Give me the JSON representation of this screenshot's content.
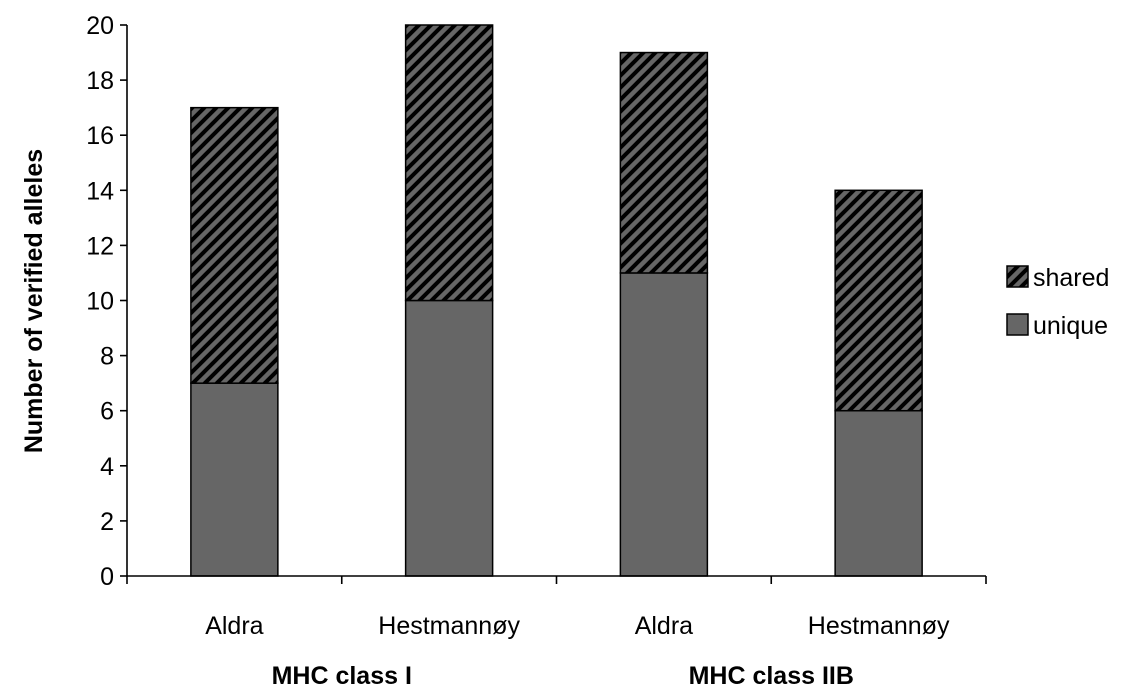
{
  "chart_data": {
    "type": "bar",
    "stacked": true,
    "ylabel": "Number of verified alleles",
    "xlabel": "",
    "ylim": [
      0,
      20
    ],
    "ytick_step": 2,
    "yticks": [
      "0",
      "2",
      "4",
      "6",
      "8",
      "10",
      "12",
      "14",
      "16",
      "18",
      "20"
    ],
    "categories": [
      "Aldra",
      "Hestmannøy",
      "Aldra",
      "Hestmannøy"
    ],
    "groups": [
      {
        "label": "MHC class I",
        "categories": [
          "Aldra",
          "Hestmannøy"
        ]
      },
      {
        "label": "MHC class IIB",
        "categories": [
          "Aldra",
          "Hestmannøy"
        ]
      }
    ],
    "series": [
      {
        "name": "unique",
        "values": [
          7,
          10,
          11,
          6
        ],
        "color": "#666666",
        "pattern": "solid"
      },
      {
        "name": "shared",
        "values": [
          10,
          10,
          8,
          8
        ],
        "color": "#666666",
        "pattern": "diagonal-hatch"
      }
    ],
    "legend": {
      "placement": "right",
      "order": [
        "shared",
        "unique"
      ]
    },
    "grid": false
  }
}
